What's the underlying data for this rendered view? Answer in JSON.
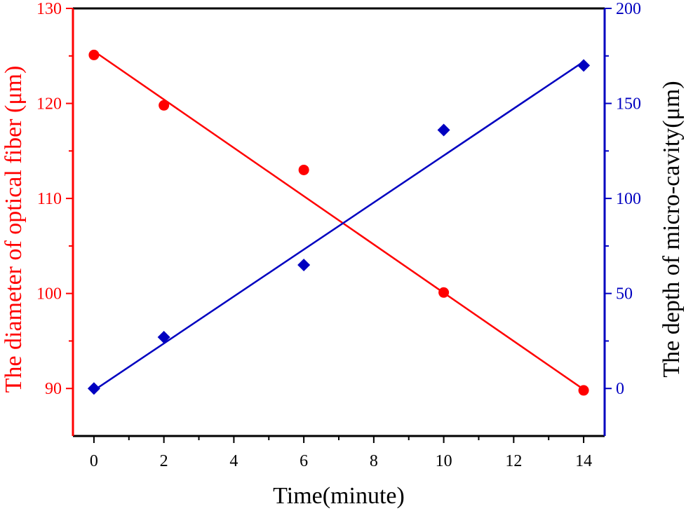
{
  "chart_data": {
    "type": "scatter",
    "title": "",
    "xlabel": "Time(minute)",
    "xlim": [
      -0.6,
      14.6
    ],
    "xticks": [
      0,
      2,
      4,
      6,
      8,
      10,
      12,
      14
    ],
    "xtick_labels": [
      "0",
      "2",
      "4",
      "6",
      "8",
      "10",
      "12",
      "14"
    ],
    "y_left": {
      "label": "The diameter of optical fiber (μm)",
      "lim": [
        85,
        130
      ],
      "ticks": [
        90,
        100,
        110,
        120,
        130
      ],
      "tick_labels": [
        "90",
        "100",
        "110",
        "120",
        "130"
      ],
      "color": "#ff0000"
    },
    "y_right": {
      "label": "The depth of micro-cavity(μm)",
      "lim": [
        -25,
        200
      ],
      "ticks": [
        0,
        50,
        100,
        150,
        200
      ],
      "tick_labels": [
        "0",
        "50",
        "100",
        "150",
        "200"
      ],
      "color": "#0000c0"
    },
    "grid": false,
    "series": [
      {
        "axis": "left",
        "marker": "circle",
        "color": "#ff0000",
        "x": [
          0,
          2,
          6,
          10,
          14
        ],
        "y": [
          125.1,
          119.8,
          113.0,
          100.1,
          89.8
        ],
        "fit": {
          "x": [
            0,
            14
          ],
          "y": [
            125.5,
            89.9
          ]
        }
      },
      {
        "axis": "right",
        "marker": "diamond",
        "color": "#0000c0",
        "x": [
          0,
          2,
          6,
          10,
          14
        ],
        "y": [
          0,
          27,
          65,
          136,
          170
        ],
        "fit": {
          "x": [
            0,
            14
          ],
          "y": [
            -1,
            172
          ]
        }
      }
    ]
  }
}
